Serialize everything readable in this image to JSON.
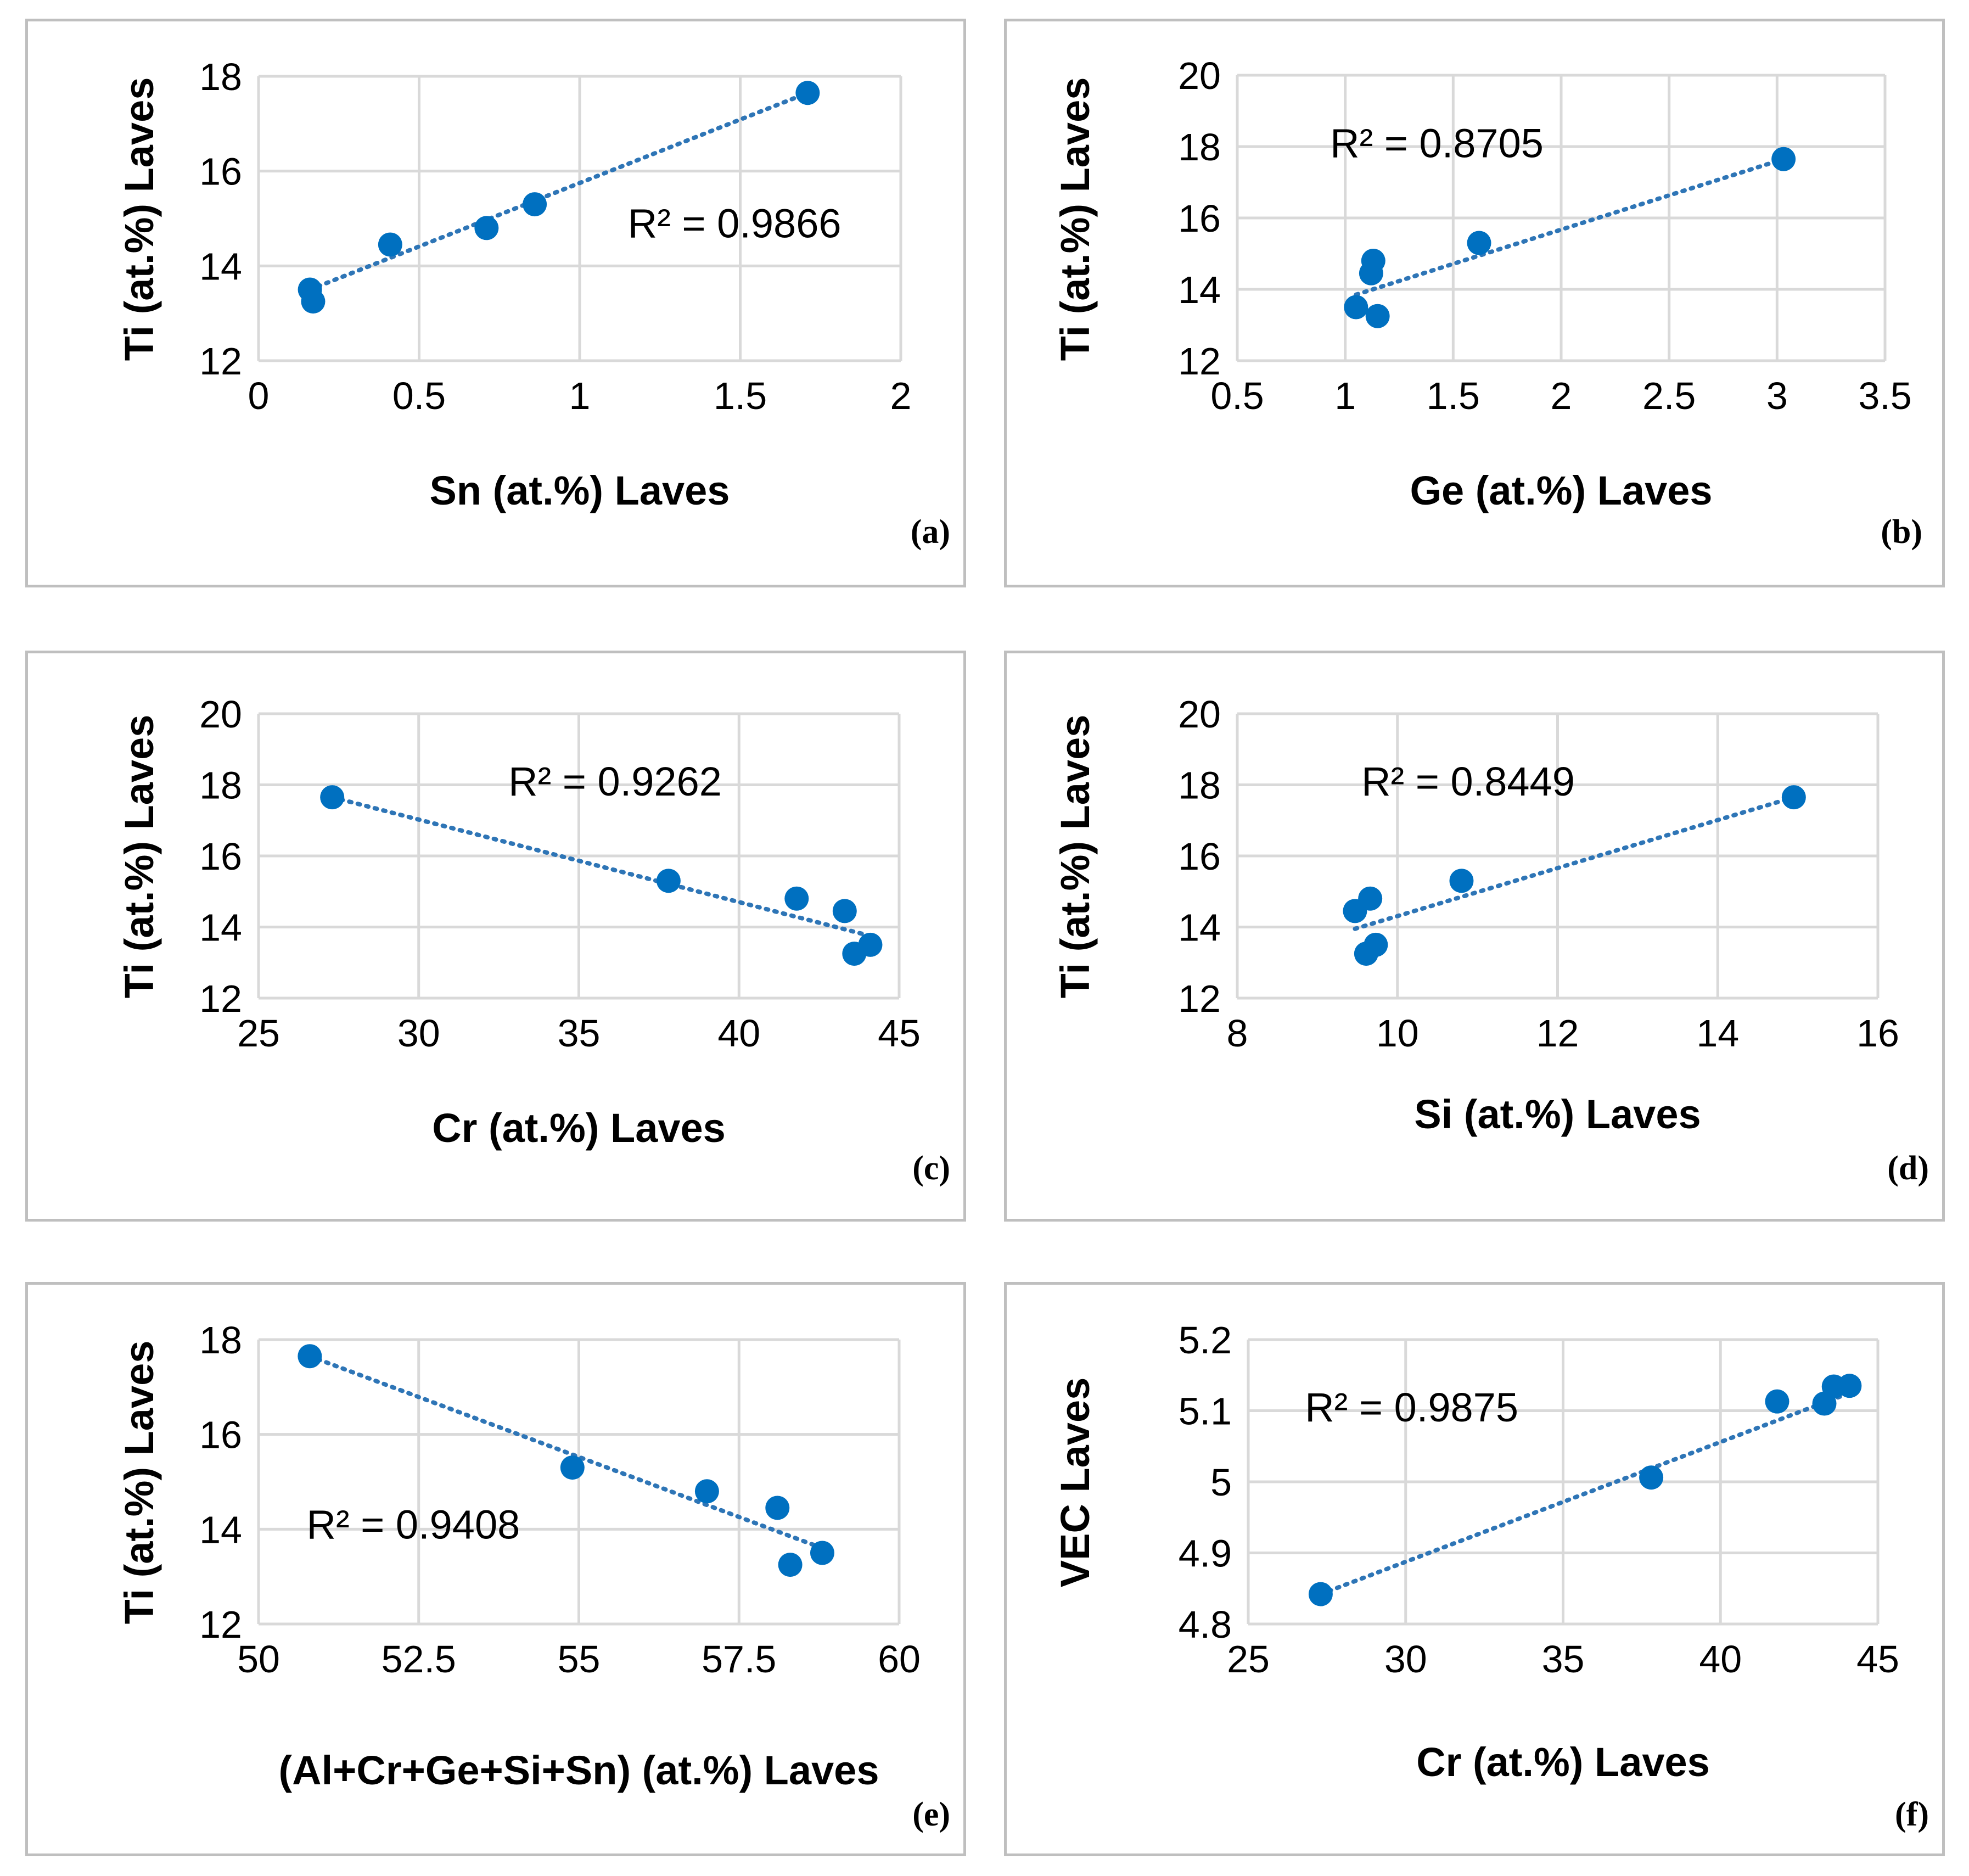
{
  "chart_data": [
    {
      "id": "a",
      "type": "scatter",
      "panel_label": "(a)",
      "xlabel": "Sn (at.%) Laves",
      "ylabel": "Ti (at.%) Laves",
      "xlim": [
        0,
        2
      ],
      "ylim": [
        12,
        18
      ],
      "xticks": [
        0,
        0.5,
        1,
        1.5,
        2
      ],
      "xtick_labels": [
        "0",
        "0.5",
        "1",
        "1.5",
        "2"
      ],
      "yticks": [
        12,
        14,
        16,
        18
      ],
      "ytick_labels": [
        "12",
        "14",
        "16",
        "18"
      ],
      "points": [
        {
          "x": 0.16,
          "y": 13.5
        },
        {
          "x": 0.17,
          "y": 13.25
        },
        {
          "x": 0.41,
          "y": 14.45
        },
        {
          "x": 0.71,
          "y": 14.8
        },
        {
          "x": 0.86,
          "y": 15.3
        },
        {
          "x": 1.71,
          "y": 17.65
        }
      ],
      "trendline": {
        "x0": 0.16,
        "y0": 13.5,
        "x1": 1.71,
        "y1": 17.65
      },
      "r2_label": "R² = 0.9866",
      "r2_pos": {
        "x": 1.15,
        "y": 14.6
      }
    },
    {
      "id": "b",
      "type": "scatter",
      "panel_label": "(b)",
      "xlabel": "Ge (at.%) Laves",
      "ylabel": "Ti (at.%) Laves",
      "xlim": [
        0.5,
        3.5
      ],
      "ylim": [
        12,
        20
      ],
      "xticks": [
        0.5,
        1,
        1.5,
        2,
        2.5,
        3,
        3.5
      ],
      "xtick_labels": [
        "0.5",
        "1",
        "1.5",
        "2",
        "2.5",
        "3",
        "3.5"
      ],
      "yticks": [
        12,
        14,
        16,
        18,
        20
      ],
      "ytick_labels": [
        "12",
        "14",
        "16",
        "18",
        "20"
      ],
      "points": [
        {
          "x": 1.05,
          "y": 13.5
        },
        {
          "x": 1.15,
          "y": 13.25
        },
        {
          "x": 1.12,
          "y": 14.45
        },
        {
          "x": 1.13,
          "y": 14.8
        },
        {
          "x": 1.62,
          "y": 15.3
        },
        {
          "x": 3.03,
          "y": 17.65
        }
      ],
      "trendline": {
        "x0": 1.05,
        "y0": 13.85,
        "x1": 3.03,
        "y1": 17.65
      },
      "r2_label": "R² = 0.8705",
      "r2_pos": {
        "x": 0.93,
        "y": 17.7
      }
    },
    {
      "id": "c",
      "type": "scatter",
      "panel_label": "(c)",
      "xlabel": "Cr (at.%) Laves",
      "ylabel": "Ti (at.%) Laves",
      "xlim": [
        25,
        45
      ],
      "ylim": [
        12,
        20
      ],
      "xticks": [
        25,
        30,
        35,
        40,
        45
      ],
      "xtick_labels": [
        "25",
        "30",
        "35",
        "40",
        "45"
      ],
      "yticks": [
        12,
        14,
        16,
        18,
        20
      ],
      "ytick_labels": [
        "12",
        "14",
        "16",
        "18",
        "20"
      ],
      "points": [
        {
          "x": 27.3,
          "y": 17.65
        },
        {
          "x": 37.8,
          "y": 15.3
        },
        {
          "x": 41.8,
          "y": 14.8
        },
        {
          "x": 43.3,
          "y": 14.45
        },
        {
          "x": 43.6,
          "y": 13.25
        },
        {
          "x": 44.1,
          "y": 13.5
        }
      ],
      "trendline": {
        "x0": 27.3,
        "y0": 17.65,
        "x1": 44.1,
        "y1": 13.75
      },
      "r2_label": "R² = 0.9262",
      "r2_pos": {
        "x": 32.8,
        "y": 17.7
      }
    },
    {
      "id": "d",
      "type": "scatter",
      "panel_label": "(d)",
      "xlabel": "Si (at.%) Laves",
      "ylabel": "Ti (at.%) Laves",
      "xlim": [
        8,
        16
      ],
      "ylim": [
        12,
        20
      ],
      "xticks": [
        8,
        10,
        12,
        14,
        16
      ],
      "xtick_labels": [
        "8",
        "10",
        "12",
        "14",
        "16"
      ],
      "yticks": [
        12,
        14,
        16,
        18,
        20
      ],
      "ytick_labels": [
        "12",
        "14",
        "16",
        "18",
        "20"
      ],
      "points": [
        {
          "x": 9.47,
          "y": 14.45
        },
        {
          "x": 9.61,
          "y": 13.25
        },
        {
          "x": 9.66,
          "y": 14.8
        },
        {
          "x": 9.73,
          "y": 13.5
        },
        {
          "x": 10.8,
          "y": 15.3
        },
        {
          "x": 14.95,
          "y": 17.65
        }
      ],
      "trendline": {
        "x0": 9.47,
        "y0": 13.95,
        "x1": 14.95,
        "y1": 17.65
      },
      "r2_label": "R² = 0.8449",
      "r2_pos": {
        "x": 9.55,
        "y": 17.7
      }
    },
    {
      "id": "e",
      "type": "scatter",
      "panel_label": "(e)",
      "xlabel": "(Al+Cr+Ge+Si+Sn) (at.%) Laves",
      "ylabel": "Ti (at.%) Laves",
      "xlim": [
        50,
        60
      ],
      "ylim": [
        12,
        18
      ],
      "xticks": [
        50,
        52.5,
        55,
        57.5,
        60
      ],
      "xtick_labels": [
        "50",
        "52.5",
        "55",
        "57.5",
        "60"
      ],
      "yticks": [
        12,
        14,
        16,
        18
      ],
      "ytick_labels": [
        "12",
        "14",
        "16",
        "18"
      ],
      "points": [
        {
          "x": 50.8,
          "y": 17.65
        },
        {
          "x": 54.9,
          "y": 15.3
        },
        {
          "x": 57.0,
          "y": 14.8
        },
        {
          "x": 58.1,
          "y": 14.45
        },
        {
          "x": 58.3,
          "y": 13.25
        },
        {
          "x": 58.8,
          "y": 13.5
        }
      ],
      "trendline": {
        "x0": 50.8,
        "y0": 17.65,
        "x1": 58.8,
        "y1": 13.6
      },
      "r2_label": "R² = 0.9408",
      "r2_pos": {
        "x": 50.75,
        "y": 13.8
      }
    },
    {
      "id": "f",
      "type": "scatter",
      "panel_label": "(f)",
      "xlabel": "Cr (at.%) Laves",
      "ylabel": "VEC Laves",
      "xlim": [
        25,
        45
      ],
      "ylim": [
        4.8,
        5.2
      ],
      "xticks": [
        25,
        30,
        35,
        40,
        45
      ],
      "xtick_labels": [
        "25",
        "30",
        "35",
        "40",
        "45"
      ],
      "yticks": [
        4.8,
        4.9,
        5.0,
        5.1,
        5.2
      ],
      "ytick_labels": [
        "4.8",
        "4.9",
        "5",
        "5.1",
        "5.2"
      ],
      "points": [
        {
          "x": 27.3,
          "y": 4.842
        },
        {
          "x": 37.8,
          "y": 5.006
        },
        {
          "x": 41.8,
          "y": 5.113
        },
        {
          "x": 43.3,
          "y": 5.11
        },
        {
          "x": 43.6,
          "y": 5.134
        },
        {
          "x": 44.1,
          "y": 5.135
        }
      ],
      "trendline": {
        "x0": 27.3,
        "y0": 4.842,
        "x1": 44.1,
        "y1": 5.125
      },
      "r2_label": "R² = 0.9875",
      "r2_pos": {
        "x": 26.8,
        "y": 5.085
      }
    }
  ]
}
